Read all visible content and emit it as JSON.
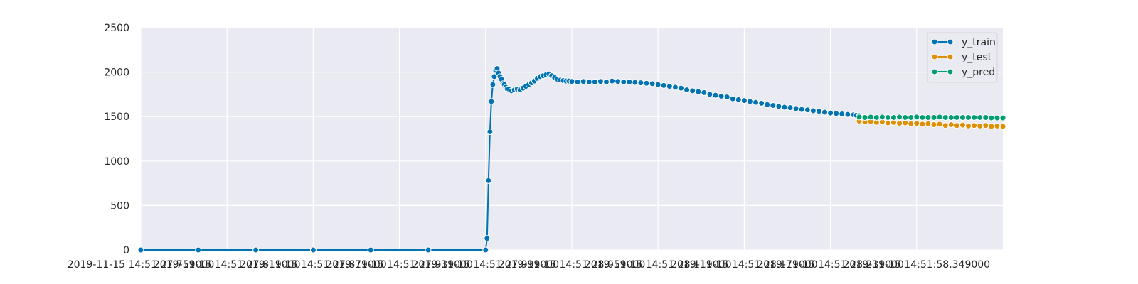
{
  "chart_data": {
    "type": "line",
    "title": "",
    "xlabel": "",
    "ylabel": "",
    "ylim": [
      0,
      2500
    ],
    "yticks": [
      0,
      500,
      1000,
      1500,
      2000,
      2500
    ],
    "xtick_labels": [
      "2019-11-15 14:51:27.759000",
      "2019-11-15 14:51:27.819000",
      "2019-11-15 14:51:27.879000",
      "2019-11-15 14:51:27.939000",
      "2019-11-15 14:51:27.999000",
      "2019-11-15 14:51:28.059000",
      "2019-11-15 14:51:28.119000",
      "2019-11-15 14:51:28.179000",
      "2019-11-15 14:51:28.239000",
      "2019-11-15 14:51:58.349000"
    ],
    "grid": true,
    "background": "#eaeaf2",
    "legend_position": "top-right",
    "series": [
      {
        "name": "y_train",
        "color": "#0173b2",
        "points": [
          [
            0,
            0
          ],
          [
            40,
            0
          ],
          [
            80,
            0
          ],
          [
            120,
            0
          ],
          [
            160,
            0
          ],
          [
            200,
            0
          ],
          [
            240,
            0
          ],
          [
            241,
            130
          ],
          [
            242,
            780
          ],
          [
            243,
            1330
          ],
          [
            244,
            1670
          ],
          [
            245,
            1860
          ],
          [
            246,
            1950
          ],
          [
            247,
            2020
          ],
          [
            248,
            2040
          ],
          [
            249,
            1990
          ],
          [
            250,
            1950
          ],
          [
            251,
            1920
          ],
          [
            252,
            1870
          ],
          [
            253,
            1860
          ],
          [
            254,
            1830
          ],
          [
            255,
            1810
          ],
          [
            256,
            1810
          ],
          [
            258,
            1790
          ],
          [
            260,
            1800
          ],
          [
            262,
            1810
          ],
          [
            264,
            1800
          ],
          [
            266,
            1820
          ],
          [
            268,
            1840
          ],
          [
            270,
            1860
          ],
          [
            272,
            1880
          ],
          [
            274,
            1900
          ],
          [
            276,
            1930
          ],
          [
            278,
            1950
          ],
          [
            280,
            1960
          ],
          [
            282,
            1970
          ],
          [
            284,
            1980
          ],
          [
            286,
            1960
          ],
          [
            288,
            1940
          ],
          [
            290,
            1920
          ],
          [
            292,
            1910
          ],
          [
            294,
            1905
          ],
          [
            296,
            1900
          ],
          [
            298,
            1900
          ],
          [
            300,
            1895
          ],
          [
            304,
            1890
          ],
          [
            308,
            1895
          ],
          [
            312,
            1890
          ],
          [
            316,
            1890
          ],
          [
            320,
            1895
          ],
          [
            324,
            1890
          ],
          [
            328,
            1900
          ],
          [
            332,
            1895
          ],
          [
            336,
            1890
          ],
          [
            340,
            1890
          ],
          [
            344,
            1885
          ],
          [
            348,
            1880
          ],
          [
            352,
            1875
          ],
          [
            356,
            1870
          ],
          [
            360,
            1860
          ],
          [
            364,
            1850
          ],
          [
            368,
            1840
          ],
          [
            372,
            1830
          ],
          [
            376,
            1820
          ],
          [
            380,
            1800
          ],
          [
            384,
            1790
          ],
          [
            388,
            1780
          ],
          [
            392,
            1770
          ],
          [
            396,
            1750
          ],
          [
            400,
            1740
          ],
          [
            404,
            1730
          ],
          [
            408,
            1720
          ],
          [
            412,
            1700
          ],
          [
            416,
            1690
          ],
          [
            420,
            1680
          ],
          [
            424,
            1670
          ],
          [
            428,
            1660
          ],
          [
            432,
            1650
          ],
          [
            436,
            1635
          ],
          [
            440,
            1625
          ],
          [
            444,
            1615
          ],
          [
            448,
            1605
          ],
          [
            452,
            1600
          ],
          [
            456,
            1590
          ],
          [
            460,
            1580
          ],
          [
            464,
            1575
          ],
          [
            468,
            1565
          ],
          [
            472,
            1560
          ],
          [
            476,
            1550
          ],
          [
            480,
            1540
          ],
          [
            484,
            1535
          ],
          [
            488,
            1530
          ],
          [
            492,
            1525
          ],
          [
            496,
            1520
          ],
          [
            498,
            1515
          ],
          [
            500,
            1510
          ]
        ]
      },
      {
        "name": "y_test",
        "color": "#de8f05",
        "points": [
          [
            500,
            1450
          ],
          [
            504,
            1440
          ],
          [
            508,
            1445
          ],
          [
            512,
            1435
          ],
          [
            516,
            1440
          ],
          [
            520,
            1430
          ],
          [
            524,
            1435
          ],
          [
            528,
            1425
          ],
          [
            532,
            1430
          ],
          [
            536,
            1420
          ],
          [
            540,
            1425
          ],
          [
            544,
            1415
          ],
          [
            548,
            1420
          ],
          [
            552,
            1410
          ],
          [
            556,
            1415
          ],
          [
            560,
            1400
          ],
          [
            564,
            1410
          ],
          [
            568,
            1400
          ],
          [
            572,
            1405
          ],
          [
            576,
            1395
          ],
          [
            580,
            1400
          ],
          [
            584,
            1395
          ],
          [
            588,
            1400
          ],
          [
            592,
            1390
          ],
          [
            596,
            1395
          ],
          [
            600,
            1390
          ]
        ]
      },
      {
        "name": "y_pred",
        "color": "#029e73",
        "points": [
          [
            500,
            1495
          ],
          [
            504,
            1490
          ],
          [
            508,
            1495
          ],
          [
            512,
            1490
          ],
          [
            516,
            1495
          ],
          [
            520,
            1490
          ],
          [
            524,
            1490
          ],
          [
            528,
            1495
          ],
          [
            532,
            1490
          ],
          [
            536,
            1490
          ],
          [
            540,
            1495
          ],
          [
            544,
            1490
          ],
          [
            548,
            1490
          ],
          [
            552,
            1490
          ],
          [
            556,
            1495
          ],
          [
            560,
            1490
          ],
          [
            564,
            1490
          ],
          [
            568,
            1490
          ],
          [
            572,
            1490
          ],
          [
            576,
            1490
          ],
          [
            580,
            1490
          ],
          [
            584,
            1490
          ],
          [
            588,
            1490
          ],
          [
            592,
            1485
          ],
          [
            596,
            1485
          ],
          [
            600,
            1485
          ]
        ]
      }
    ]
  }
}
